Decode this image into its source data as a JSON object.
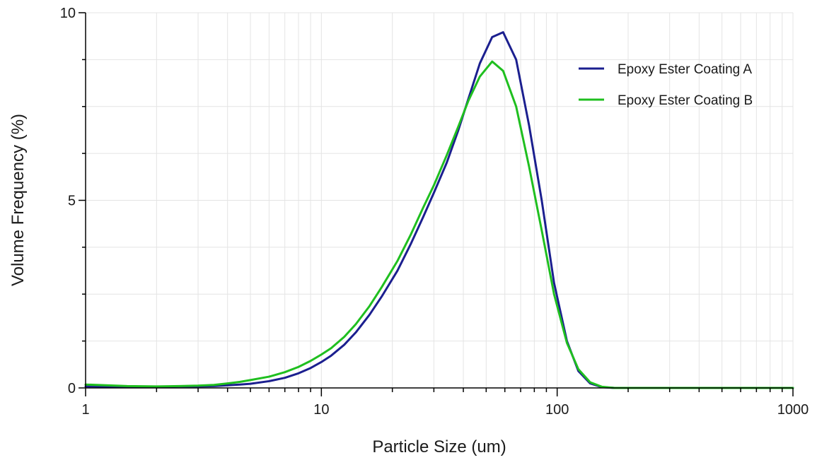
{
  "chart_data": {
    "type": "line",
    "xlabel": "Particle Size (um)",
    "ylabel": "Volume Frequency (%)",
    "xscale": "log",
    "xlim": [
      1,
      1000
    ],
    "ylim": [
      0,
      10
    ],
    "x_ticks": [
      1,
      10,
      100,
      1000
    ],
    "x_tick_labels": [
      "1",
      "10",
      "100",
      "1000"
    ],
    "y_ticks": [
      0,
      5,
      10
    ],
    "y_tick_labels": [
      "0",
      "5",
      "10"
    ],
    "grid": true,
    "legend_position": "top-right",
    "series": [
      {
        "name": "Epoxy Ester Coating A",
        "color": "#1b1f8f",
        "x": [
          1,
          1.5,
          2,
          2.5,
          3,
          3.5,
          4,
          4.5,
          5,
          6,
          7,
          8,
          9,
          10,
          11,
          12.5,
          14,
          16,
          18,
          21,
          24,
          27,
          30,
          34,
          38,
          42,
          47,
          53,
          59,
          67,
          76,
          86,
          97,
          110,
          123,
          138,
          155,
          175,
          200,
          300,
          500,
          1000
        ],
        "values": [
          0.04,
          0.03,
          0.03,
          0.04,
          0.04,
          0.05,
          0.07,
          0.09,
          0.11,
          0.18,
          0.27,
          0.39,
          0.53,
          0.69,
          0.86,
          1.15,
          1.48,
          1.95,
          2.43,
          3.12,
          3.85,
          4.55,
          5.2,
          6.0,
          6.85,
          7.7,
          8.65,
          9.35,
          9.48,
          8.75,
          7.0,
          5.0,
          2.8,
          1.25,
          0.45,
          0.12,
          0.02,
          0.0,
          0.0,
          0.0,
          0.0,
          0.0
        ]
      },
      {
        "name": "Epoxy Ester Coating B",
        "color": "#1fbf1f",
        "x": [
          1,
          1.5,
          2,
          2.5,
          3,
          3.5,
          4,
          4.5,
          5,
          6,
          7,
          8,
          9,
          10,
          11,
          12.5,
          14,
          16,
          18,
          21,
          24,
          27,
          30,
          34,
          38,
          42,
          47,
          53,
          59,
          67,
          76,
          86,
          97,
          110,
          123,
          138,
          155,
          175,
          200,
          300,
          500,
          1000
        ],
        "values": [
          0.09,
          0.05,
          0.04,
          0.05,
          0.06,
          0.08,
          0.12,
          0.16,
          0.21,
          0.3,
          0.42,
          0.56,
          0.72,
          0.89,
          1.06,
          1.36,
          1.7,
          2.18,
          2.68,
          3.38,
          4.1,
          4.8,
          5.4,
          6.2,
          6.95,
          7.65,
          8.3,
          8.7,
          8.45,
          7.5,
          5.9,
          4.2,
          2.5,
          1.2,
          0.5,
          0.15,
          0.03,
          0.0,
          0.0,
          0.0,
          0.0,
          0.0
        ]
      }
    ]
  }
}
